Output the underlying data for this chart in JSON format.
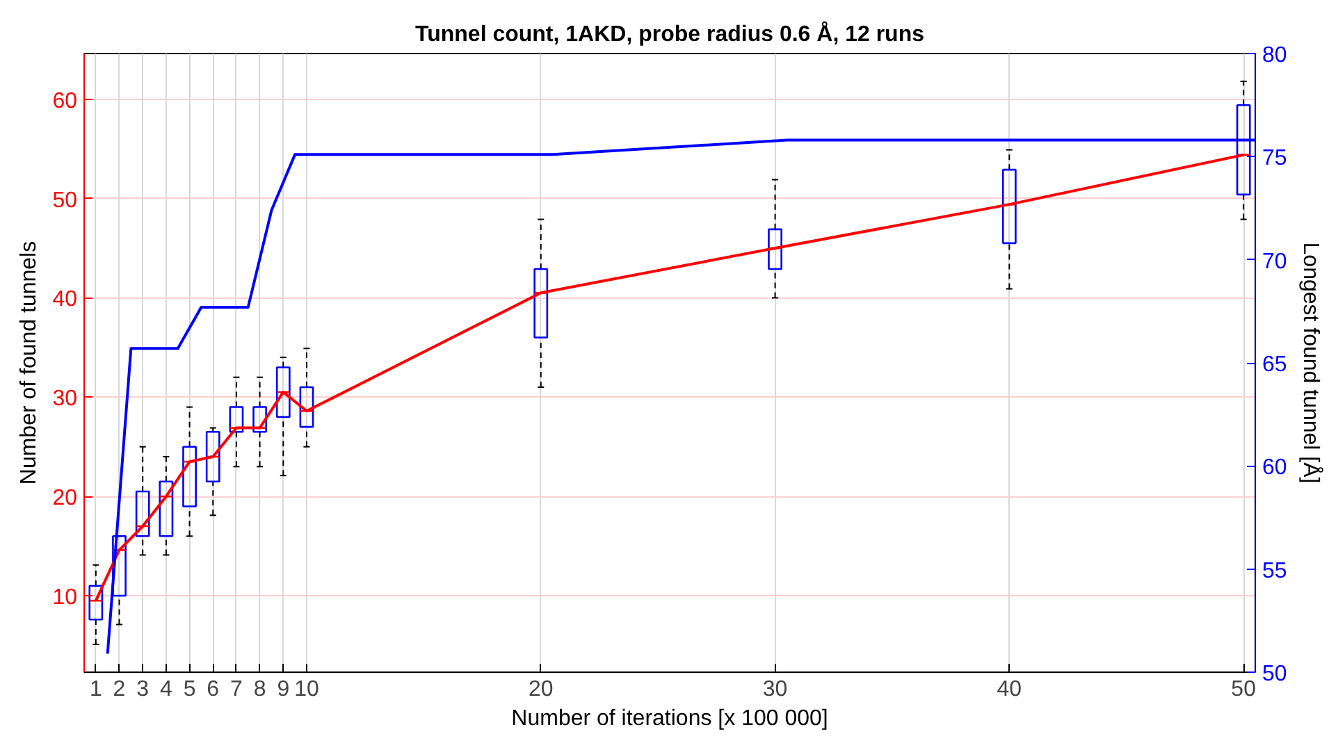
{
  "chart_data": {
    "type": "line",
    "title": "Tunnel count, 1AKD, probe radius 0.6 Å, 12 runs",
    "xlabel": "Number of iterations [x 100 000]",
    "ylabel": "Number of found tunnels",
    "y2label": "Longest found tunnel [Å]",
    "xlim": [
      0.5,
      50.5
    ],
    "xticks": [
      1,
      2,
      3,
      4,
      5,
      6,
      7,
      8,
      9,
      10,
      20,
      30,
      40,
      50
    ],
    "ylim": [
      2.3,
      64.6
    ],
    "yticks": [
      10,
      20,
      30,
      40,
      50,
      60
    ],
    "y2lim": [
      50,
      80
    ],
    "y2ticks": [
      50,
      55,
      60,
      65,
      70,
      75,
      80
    ],
    "grid": true,
    "series": [
      {
        "type": "box",
        "color": "#0000ff",
        "x": [
          1,
          2,
          3,
          4,
          5,
          6,
          7,
          8,
          9,
          10,
          20,
          30,
          40,
          50
        ],
        "boxes": [
          {
            "low": 5.1,
            "q1": 7.6,
            "median": 9.5,
            "q3": 11.0,
            "high": 13.1
          },
          {
            "low": 7.1,
            "q1": 10.0,
            "median": 14.6,
            "q3": 16.0,
            "high": 16.0
          },
          {
            "low": 14.1,
            "q1": 16.0,
            "median": 17.0,
            "q3": 20.5,
            "high": 25.0
          },
          {
            "low": 14.1,
            "q1": 16.0,
            "median": 20.0,
            "q3": 21.5,
            "high": 24.0
          },
          {
            "low": 16.0,
            "q1": 19.0,
            "median": 23.5,
            "q3": 25.0,
            "high": 29.0
          },
          {
            "low": 18.1,
            "q1": 21.5,
            "median": 24.0,
            "q3": 26.5,
            "high": 26.9
          },
          {
            "low": 23.0,
            "q1": 26.5,
            "median": 26.9,
            "q3": 29.0,
            "high": 32.0
          },
          {
            "low": 23.0,
            "q1": 26.5,
            "median": 26.9,
            "q3": 29.0,
            "high": 32.0
          },
          {
            "low": 22.1,
            "q1": 28.0,
            "median": 30.5,
            "q3": 33.0,
            "high": 34.0
          },
          {
            "low": 25.0,
            "q1": 27.0,
            "median": 28.6,
            "q3": 31.0,
            "high": 34.9
          },
          {
            "low": 31.0,
            "q1": 36.0,
            "median": 40.5,
            "q3": 42.9,
            "high": 47.9
          },
          {
            "low": 40.0,
            "q1": 42.9,
            "median": 45.0,
            "q3": 46.9,
            "high": 51.9
          },
          {
            "low": 40.9,
            "q1": 45.5,
            "median": 49.4,
            "q3": 52.9,
            "high": 54.9
          },
          {
            "low": 47.9,
            "q1": 50.4,
            "median": 54.4,
            "q3": 59.4,
            "high": 61.8
          }
        ]
      },
      {
        "color": "#ff0000",
        "x": [
          1,
          2,
          3,
          4,
          5,
          6,
          7,
          8,
          9,
          10,
          20,
          30,
          40,
          50
        ],
        "values": [
          9.5,
          14.6,
          17.0,
          20.0,
          23.5,
          24.0,
          26.9,
          26.9,
          30.5,
          28.6,
          40.5,
          45.0,
          49.4,
          54.4
        ]
      },
      {
        "type": "line",
        "color": "#0000ff",
        "axis": "y2",
        "x": [
          1.5,
          2.5,
          3.5,
          4.5,
          5.5,
          6.5,
          7.5,
          8.5,
          9.5,
          10.5,
          20.5,
          30.5,
          40.5,
          50.5
        ],
        "values": [
          50.9,
          65.7,
          65.7,
          65.7,
          67.7,
          67.7,
          67.7,
          72.4,
          75.1,
          75.1,
          75.1,
          75.8,
          75.8,
          75.8
        ]
      }
    ]
  }
}
